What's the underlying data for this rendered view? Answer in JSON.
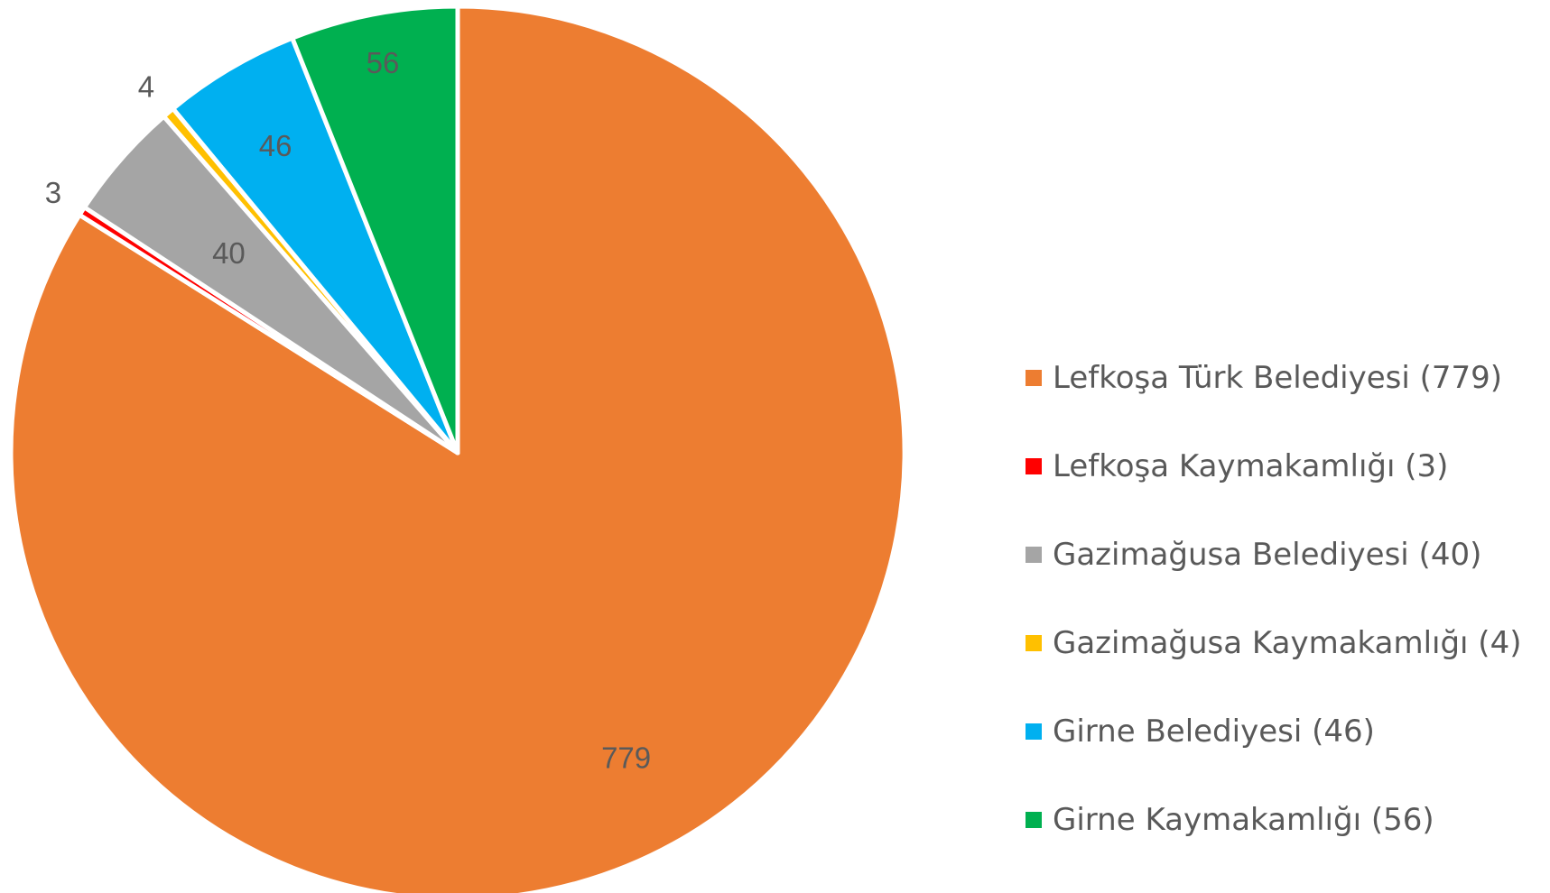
{
  "chart_data": {
    "type": "pie",
    "categories": [
      "Lefkoşa Türk Belediyesi (779)",
      "Lefkoşa Kaymakamlığı (3)",
      "Gazimağusa Belediyesi (40)",
      "Gazimağusa Kaymakamlığı (4)",
      "Girne Belediyesi (46)",
      "Girne Kaymakamlığı (56)"
    ],
    "values": [
      779,
      3,
      40,
      4,
      46,
      56
    ],
    "data_labels": [
      "779",
      "3",
      "40",
      "4",
      "46",
      "56"
    ],
    "colors": [
      "#ED7D31",
      "#FF0000",
      "#A5A5A5",
      "#FFC000",
      "#00B0F0",
      "#00B050"
    ],
    "direction": "clockwise",
    "start": "top",
    "legend_position": "right",
    "title": ""
  }
}
